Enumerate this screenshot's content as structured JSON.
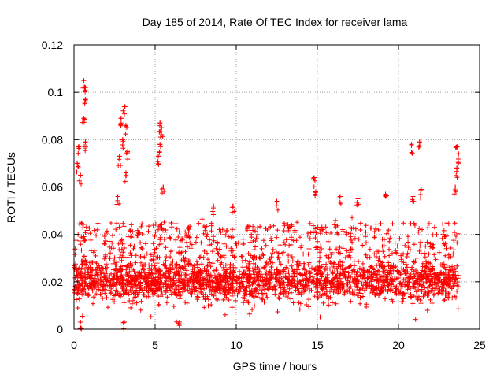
{
  "chart_data": {
    "type": "scatter",
    "title": "Day 185 of 2014, Rate Of TEC Index for receiver lama",
    "xlabel": "GPS time / hours",
    "ylabel": "ROTI / TECUs",
    "xlim": [
      0,
      25
    ],
    "ylim": [
      0,
      0.12
    ],
    "xticks": [
      0,
      5,
      10,
      15,
      20,
      25
    ],
    "xtick_labels": [
      "0",
      "5",
      "10",
      "15",
      "20",
      "25"
    ],
    "yticks": [
      0,
      0.02,
      0.04,
      0.06,
      0.08,
      0.1,
      0.12
    ],
    "ytick_labels": [
      "0",
      "0.02",
      "0.04",
      "0.06",
      "0.08",
      "0.1",
      "0.12"
    ],
    "grid": true,
    "marker": "plus",
    "color": "#ff0000",
    "series": [
      {
        "name": "ROTI",
        "x_range": [
          0,
          23.7
        ],
        "typical_y_range": [
          0.008,
          0.03
        ],
        "notable_points": [
          {
            "x": 0.6,
            "y": 0.105
          },
          {
            "x": 0.7,
            "y": 0.102
          },
          {
            "x": 0.7,
            "y": 0.097
          },
          {
            "x": 0.6,
            "y": 0.089
          },
          {
            "x": 0.3,
            "y": 0.077
          },
          {
            "x": 0.2,
            "y": 0.07
          },
          {
            "x": 0.4,
            "y": 0.065
          },
          {
            "x": 0.7,
            "y": 0.079
          },
          {
            "x": 3.1,
            "y": 0.094
          },
          {
            "x": 2.9,
            "y": 0.089
          },
          {
            "x": 3.2,
            "y": 0.086
          },
          {
            "x": 3.0,
            "y": 0.08
          },
          {
            "x": 3.3,
            "y": 0.075
          },
          {
            "x": 2.8,
            "y": 0.073
          },
          {
            "x": 3.2,
            "y": 0.066
          },
          {
            "x": 2.7,
            "y": 0.056
          },
          {
            "x": 5.3,
            "y": 0.087
          },
          {
            "x": 5.4,
            "y": 0.085
          },
          {
            "x": 5.3,
            "y": 0.078
          },
          {
            "x": 5.2,
            "y": 0.073
          },
          {
            "x": 5.5,
            "y": 0.06
          },
          {
            "x": 14.8,
            "y": 0.064
          },
          {
            "x": 14.9,
            "y": 0.058
          },
          {
            "x": 12.5,
            "y": 0.054
          },
          {
            "x": 20.8,
            "y": 0.078
          },
          {
            "x": 21.3,
            "y": 0.079
          },
          {
            "x": 20.9,
            "y": 0.056
          },
          {
            "x": 21.4,
            "y": 0.059
          },
          {
            "x": 23.6,
            "y": 0.077
          },
          {
            "x": 23.7,
            "y": 0.074
          },
          {
            "x": 23.6,
            "y": 0.068
          },
          {
            "x": 23.5,
            "y": 0.06
          },
          {
            "x": 19.2,
            "y": 0.057
          },
          {
            "x": 17.5,
            "y": 0.055
          },
          {
            "x": 16.4,
            "y": 0.056
          },
          {
            "x": 9.8,
            "y": 0.052
          },
          {
            "x": 8.6,
            "y": 0.052
          },
          {
            "x": 6.5,
            "y": 0.003
          },
          {
            "x": 3.1,
            "y": 0.003
          },
          {
            "x": 0.4,
            "y": 0.003
          }
        ]
      }
    ]
  }
}
